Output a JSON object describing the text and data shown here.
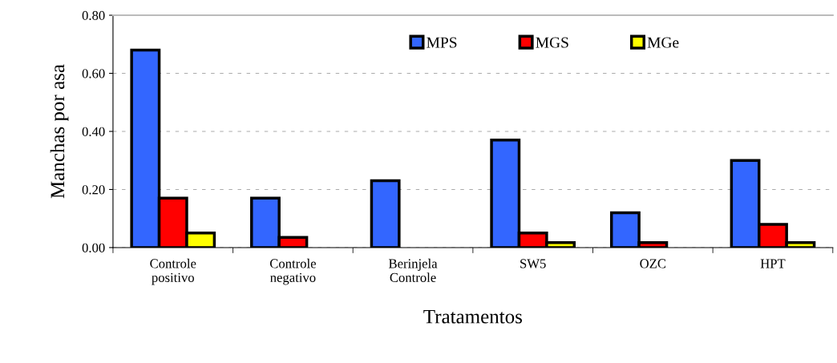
{
  "chart_data": {
    "type": "bar",
    "xlabel": "Tratamentos",
    "ylabel": "Manchas por asa",
    "categories": [
      "Controle\npositivo",
      "Controle\nnegativo",
      "Berinjela\nControle",
      "SW5",
      "OZC",
      "HPT"
    ],
    "series": [
      {
        "name": "MPS",
        "color": "#3366ff",
        "values": [
          0.68,
          0.17,
          0.23,
          0.37,
          0.12,
          0.3
        ]
      },
      {
        "name": "MGS",
        "color": "#ff0000",
        "values": [
          0.17,
          0.035,
          0,
          0.05,
          0.017,
          0.08
        ]
      },
      {
        "name": "MGe",
        "color": "#ffff00",
        "values": [
          0.05,
          0,
          0,
          0.017,
          0,
          0.017
        ]
      }
    ],
    "ylim": [
      0,
      0.8
    ],
    "yticks": [
      {
        "value": 0,
        "label": "0.00"
      },
      {
        "value": 0.2,
        "label": "0.20"
      },
      {
        "value": 0.4,
        "label": "0.40"
      },
      {
        "value": 0.6,
        "label": "0.60"
      },
      {
        "value": 0.8,
        "label": "0.80"
      }
    ],
    "grid": "y",
    "legend": "top"
  }
}
